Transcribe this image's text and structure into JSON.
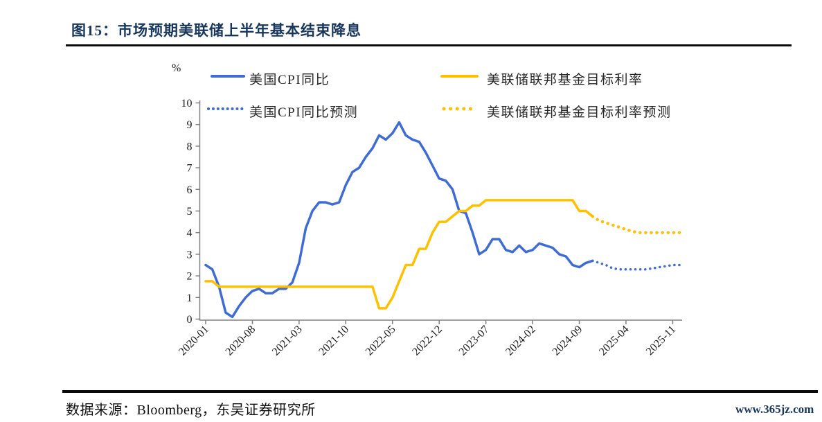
{
  "header": {
    "title": "图15：市场预期美联储上半年基本结束降息"
  },
  "footer": {
    "source": "数据来源：Bloomberg，东吴证券研究所",
    "watermark": "www.365jz.com"
  },
  "colors": {
    "cpi_blue": "#3E6BD5",
    "fed_yellow": "#FFC000",
    "title_navy": "#17365D",
    "axis_gray": "#808080",
    "tick_text": "#1a1a1a"
  },
  "chart_data": {
    "type": "line",
    "title": "图15：市场预期美联储上半年基本结束降息",
    "xlabel": "",
    "ylabel": "%",
    "ylim": [
      0,
      10
    ],
    "yticks": [
      0,
      1,
      2,
      3,
      4,
      5,
      6,
      7,
      8,
      9,
      10
    ],
    "grid": false,
    "legend_position": "top-inside",
    "x_axis_note": "monthly data, month index 0 = 2020-01",
    "xticks": {
      "months": [
        0,
        7,
        14,
        21,
        28,
        35,
        42,
        49,
        56,
        63,
        70
      ],
      "labels": [
        "2020-01",
        "2020-08",
        "2021-03",
        "2021-10",
        "2022-05",
        "2022-12",
        "2023-07",
        "2024-02",
        "2024-09",
        "2025-04",
        "2025-11"
      ]
    },
    "series": [
      {
        "name": "美国CPI同比",
        "style": "solid",
        "color": "#3E6BD5",
        "start_month": 0,
        "values": [
          2.5,
          2.3,
          1.5,
          0.3,
          0.1,
          0.6,
          1.0,
          1.3,
          1.4,
          1.2,
          1.2,
          1.4,
          1.4,
          1.7,
          2.6,
          4.2,
          5.0,
          5.4,
          5.4,
          5.3,
          5.4,
          6.2,
          6.8,
          7.0,
          7.5,
          7.9,
          8.5,
          8.3,
          8.6,
          9.1,
          8.5,
          8.3,
          8.2,
          7.7,
          7.1,
          6.5,
          6.4,
          6.0,
          5.0,
          4.9,
          4.0,
          3.0,
          3.2,
          3.7,
          3.7,
          3.2,
          3.1,
          3.4,
          3.1,
          3.2,
          3.5,
          3.4,
          3.3,
          3.0,
          2.9,
          2.5,
          2.4,
          2.6,
          2.7
        ]
      },
      {
        "name": "美联储联邦基金目标利率",
        "style": "solid",
        "color": "#FFC000",
        "start_month": 0,
        "values": [
          1.75,
          1.75,
          1.5,
          1.5,
          1.5,
          1.5,
          1.5,
          1.5,
          1.5,
          1.5,
          1.5,
          1.5,
          1.5,
          1.5,
          1.5,
          1.5,
          1.5,
          1.5,
          1.5,
          1.5,
          1.5,
          1.5,
          1.5,
          1.5,
          1.5,
          1.5,
          0.5,
          0.5,
          1.0,
          1.75,
          2.5,
          2.5,
          3.25,
          3.25,
          4.0,
          4.5,
          4.5,
          4.75,
          5.0,
          5.0,
          5.25,
          5.25,
          5.5,
          5.5,
          5.5,
          5.5,
          5.5,
          5.5,
          5.5,
          5.5,
          5.5,
          5.5,
          5.5,
          5.5,
          5.5,
          5.5,
          5.0,
          5.0,
          4.75
        ]
      },
      {
        "name": "美国CPI同比预测",
        "style": "dotted",
        "color": "#3E6BD5",
        "start_month": 58,
        "values": [
          2.7,
          2.6,
          2.5,
          2.35,
          2.3,
          2.3,
          2.3,
          2.3,
          2.3,
          2.35,
          2.4,
          2.45,
          2.5,
          2.5
        ]
      },
      {
        "name": "美联储联邦基金目标利率预测",
        "style": "dotted",
        "color": "#FFC000",
        "start_month": 58,
        "values": [
          4.75,
          4.55,
          4.45,
          4.35,
          4.25,
          4.15,
          4.05,
          4.0,
          4.0,
          4.0,
          4.0,
          4.0,
          4.0,
          4.0
        ]
      }
    ]
  }
}
